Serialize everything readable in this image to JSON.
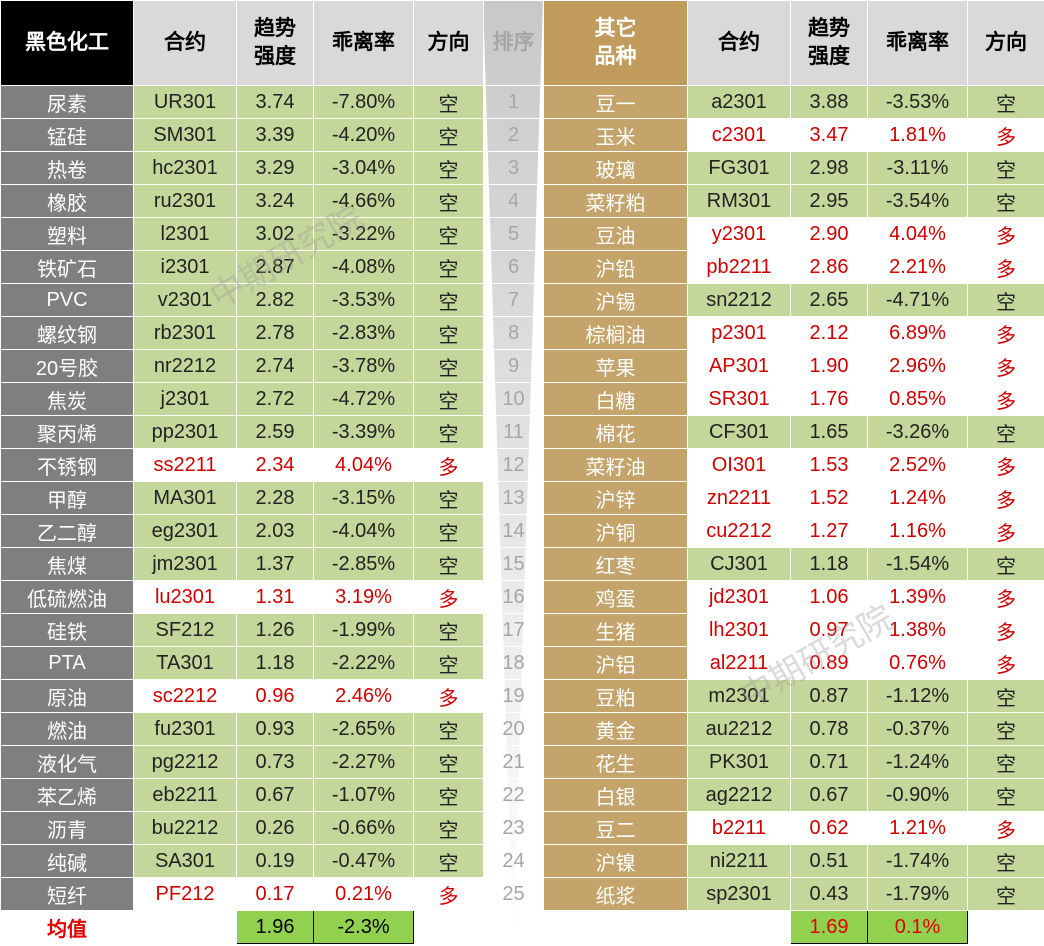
{
  "header": {
    "left_group": "黑色化工",
    "contract": "合约",
    "strength_1": "趋势",
    "strength_2": "强度",
    "bias": "乖离率",
    "direction": "方向",
    "rank": "排序",
    "right_group_1": "其它",
    "right_group_2": "品种"
  },
  "left_rows": [
    [
      "尿素",
      "UR301",
      "3.74",
      "-7.80%",
      "空"
    ],
    [
      "锰硅",
      "SM301",
      "3.39",
      "-4.20%",
      "空"
    ],
    [
      "热卷",
      "hc2301",
      "3.29",
      "-3.04%",
      "空"
    ],
    [
      "橡胶",
      "ru2301",
      "3.24",
      "-4.66%",
      "空"
    ],
    [
      "塑料",
      "l2301",
      "3.02",
      "-3.22%",
      "空"
    ],
    [
      "铁矿石",
      "i2301",
      "2.87",
      "-4.08%",
      "空"
    ],
    [
      "PVC",
      "v2301",
      "2.82",
      "-3.53%",
      "空"
    ],
    [
      "螺纹钢",
      "rb2301",
      "2.78",
      "-2.83%",
      "空"
    ],
    [
      "20号胶",
      "nr2212",
      "2.74",
      "-3.78%",
      "空"
    ],
    [
      "焦炭",
      "j2301",
      "2.72",
      "-4.72%",
      "空"
    ],
    [
      "聚丙烯",
      "pp2301",
      "2.59",
      "-3.39%",
      "空"
    ],
    [
      "不锈钢",
      "ss2211",
      "2.34",
      "4.04%",
      "多"
    ],
    [
      "甲醇",
      "MA301",
      "2.28",
      "-3.15%",
      "空"
    ],
    [
      "乙二醇",
      "eg2301",
      "2.03",
      "-4.04%",
      "空"
    ],
    [
      "焦煤",
      "jm2301",
      "1.37",
      "-2.85%",
      "空"
    ],
    [
      "低硫燃油",
      "lu2301",
      "1.31",
      "3.19%",
      "多"
    ],
    [
      "硅铁",
      "SF212",
      "1.26",
      "-1.99%",
      "空"
    ],
    [
      "PTA",
      "TA301",
      "1.18",
      "-2.22%",
      "空"
    ],
    [
      "原油",
      "sc2212",
      "0.96",
      "2.46%",
      "多"
    ],
    [
      "燃油",
      "fu2301",
      "0.93",
      "-2.65%",
      "空"
    ],
    [
      "液化气",
      "pg2212",
      "0.73",
      "-2.27%",
      "空"
    ],
    [
      "苯乙烯",
      "eb2211",
      "0.67",
      "-1.07%",
      "空"
    ],
    [
      "沥青",
      "bu2212",
      "0.26",
      "-0.66%",
      "空"
    ],
    [
      "纯碱",
      "SA301",
      "0.19",
      "-0.47%",
      "空"
    ],
    [
      "短纤",
      "PF212",
      "0.17",
      "0.21%",
      "多"
    ]
  ],
  "right_rows": [
    [
      "豆一",
      "a2301",
      "3.88",
      "-3.53%",
      "空"
    ],
    [
      "玉米",
      "c2301",
      "3.47",
      "1.81%",
      "多"
    ],
    [
      "玻璃",
      "FG301",
      "2.98",
      "-3.11%",
      "空"
    ],
    [
      "菜籽粕",
      "RM301",
      "2.95",
      "-3.54%",
      "空"
    ],
    [
      "豆油",
      "y2301",
      "2.90",
      "4.04%",
      "多"
    ],
    [
      "沪铅",
      "pb2211",
      "2.86",
      "2.21%",
      "多"
    ],
    [
      "沪锡",
      "sn2212",
      "2.65",
      "-4.71%",
      "空"
    ],
    [
      "棕榈油",
      "p2301",
      "2.12",
      "6.89%",
      "多"
    ],
    [
      "苹果",
      "AP301",
      "1.90",
      "2.96%",
      "多"
    ],
    [
      "白糖",
      "SR301",
      "1.76",
      "0.85%",
      "多"
    ],
    [
      "棉花",
      "CF301",
      "1.65",
      "-3.26%",
      "空"
    ],
    [
      "菜籽油",
      "OI301",
      "1.53",
      "2.52%",
      "多"
    ],
    [
      "沪锌",
      "zn2211",
      "1.52",
      "1.24%",
      "多"
    ],
    [
      "沪铜",
      "cu2212",
      "1.27",
      "1.16%",
      "多"
    ],
    [
      "红枣",
      "CJ301",
      "1.18",
      "-1.54%",
      "空"
    ],
    [
      "鸡蛋",
      "jd2301",
      "1.06",
      "1.39%",
      "多"
    ],
    [
      "生猪",
      "lh2301",
      "0.97",
      "1.38%",
      "多"
    ],
    [
      "沪铝",
      "al2211",
      "0.89",
      "0.76%",
      "多"
    ],
    [
      "豆粕",
      "m2301",
      "0.87",
      "-1.12%",
      "空"
    ],
    [
      "黄金",
      "au2212",
      "0.78",
      "-0.37%",
      "空"
    ],
    [
      "花生",
      "PK301",
      "0.71",
      "-1.24%",
      "空"
    ],
    [
      "白银",
      "ag2212",
      "0.67",
      "-0.90%",
      "空"
    ],
    [
      "豆二",
      "b2211",
      "0.62",
      "1.21%",
      "多"
    ],
    [
      "沪镍",
      "ni2211",
      "0.51",
      "-1.74%",
      "空"
    ],
    [
      "纸浆",
      "sp2301",
      "0.43",
      "-1.79%",
      "空"
    ]
  ],
  "ranks": [
    "1",
    "2",
    "3",
    "4",
    "5",
    "6",
    "7",
    "8",
    "9",
    "10",
    "11",
    "12",
    "13",
    "14",
    "15",
    "16",
    "17",
    "18",
    "19",
    "20",
    "21",
    "22",
    "23",
    "24",
    "25"
  ],
  "footer": {
    "label": "均值",
    "left_strength": "1.96",
    "left_bias": "-2.3%",
    "right_strength": "1.69",
    "right_bias": "0.1%"
  },
  "watermark": "中期研究院"
}
